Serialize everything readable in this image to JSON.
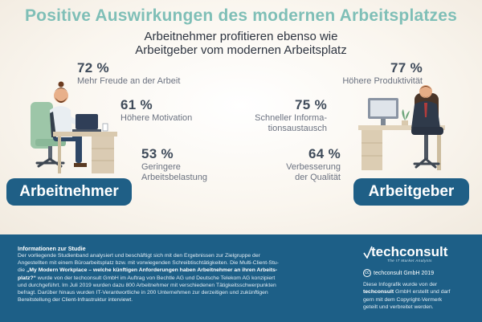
{
  "title": "Positive Auswirkungen des modernen Arbeitsplatzes",
  "subtitle": {
    "line1": "Arbeitnehmer profitieren ebenso wie",
    "line2": "Arbeitgeber vom modernen Arbeitsplatz"
  },
  "employee_stats": [
    {
      "pct": "72 %",
      "label_lines": [
        "Mehr Freude an der Arbeit"
      ]
    },
    {
      "pct": "61 %",
      "label_lines": [
        "Höhere Motivation"
      ]
    },
    {
      "pct": "53 %",
      "label_lines": [
        "Geringere",
        "Arbeitsbelastung"
      ]
    }
  ],
  "employer_stats": [
    {
      "pct": "77 %",
      "label_lines": [
        "Höhere Produktivität"
      ]
    },
    {
      "pct": "75 %",
      "label_lines": [
        "Schneller Informa-",
        "tionsaustausch"
      ]
    },
    {
      "pct": "64 %",
      "label_lines": [
        "Verbesserung",
        "der Qualität"
      ]
    }
  ],
  "badges": {
    "employee": "Arbeitnehmer",
    "employer": "Arbeitgeber"
  },
  "info": {
    "heading": "Informationen zur Studie",
    "line1": "Der vorliegende Studienband analysiert und beschäftigt sich mit den Ergebnissen zur Zielgruppe der",
    "line2": "Angestellten mit einem Büroarbeitsplatz bzw. mit vorwiegenden Schreibtischtätigkeiten. Die Multi-Client-Stu-",
    "line3_prefix": "die ",
    "line3_bold": "„My Modern Workplace – welche künftigen Anforderungen haben Arbeitnehmer an ihren Arbeits-",
    "line4_bold": "platz?“",
    "line4_rest": " wurde von der techconsult GmbH im Auftrag von Bechtle AG und Deutsche Telekom AG konzipiert",
    "line5": "und durchgeführt. Im Juli 2019 wurden dazu 800 Arbeitnehmer mit verschiedenen Tätigkeitsschwerpunkten",
    "line6": "befragt. Darüber hinaus wurden IT-Verantwortliche in 200 Unternehmen zur derzeitigen und zukünftigen",
    "line7": "Bereitstellung der Client-Infrastruktur interviewt."
  },
  "logo": {
    "word": "techconsult",
    "tagline": "The IT Market Analysts"
  },
  "copyright": {
    "symbol": "cc",
    "text": "techconsult GmbH 2019"
  },
  "right_text": {
    "line1": "Diese Infografik wurde von der",
    "line2_bold": "techconsult",
    "line2_rest": " GmbH erstellt und darf",
    "line3": "gern mit dem Copyright-Vermerk",
    "line4": "geteilt und verbreitet werden."
  },
  "colors": {
    "title": "#7fbfb7",
    "badge": "#1f5f86",
    "footer": "#1d5f87",
    "chair_green": "#9dc6a8"
  }
}
